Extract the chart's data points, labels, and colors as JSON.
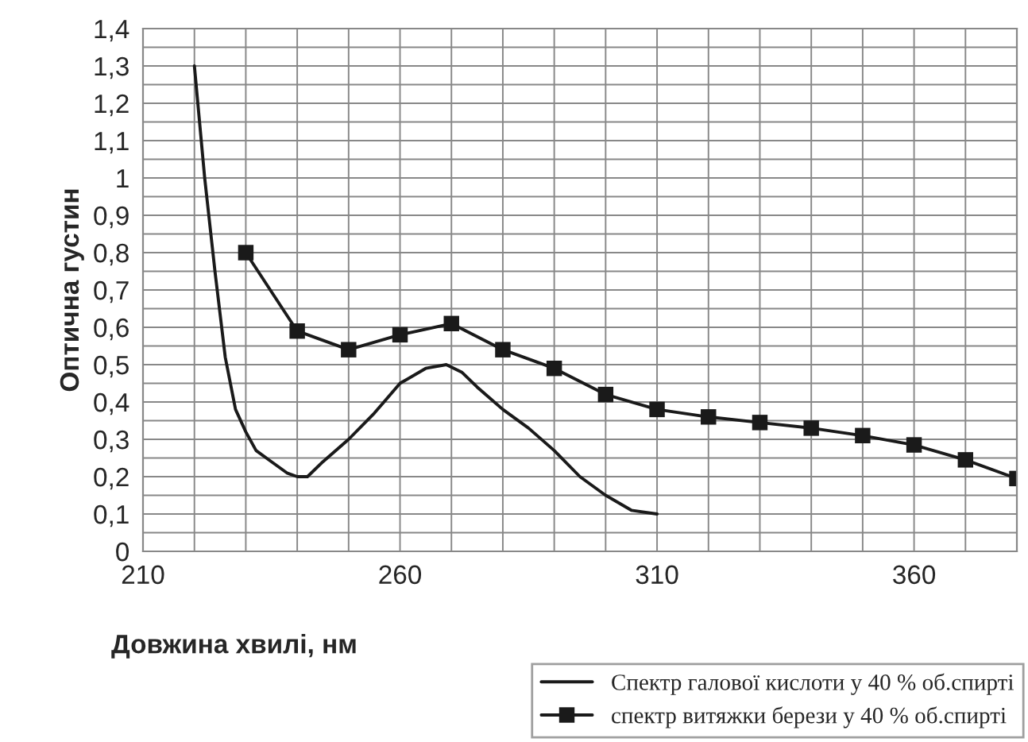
{
  "chart_data": {
    "type": "line",
    "xlabel": "Довжина хвилі, нм",
    "ylabel": "Оптична густин",
    "xlim": [
      210,
      380
    ],
    "ylim": [
      0,
      1.4
    ],
    "xticks": [
      210,
      {
        "value": 220,
        "label": null
      },
      {
        "value": 230,
        "label": null
      },
      {
        "value": 240,
        "label": null
      },
      {
        "value": 250,
        "label": null
      },
      260,
      {
        "value": 270,
        "label": null
      },
      {
        "value": 280,
        "label": null
      },
      {
        "value": 290,
        "label": null
      },
      {
        "value": 300,
        "label": null
      },
      310,
      {
        "value": 320,
        "label": null
      },
      {
        "value": 330,
        "label": null
      },
      {
        "value": 340,
        "label": null
      },
      {
        "value": 350,
        "label": null
      },
      360,
      {
        "value": 370,
        "label": null
      },
      {
        "value": 380,
        "label": null
      }
    ],
    "yticks": [
      0,
      {
        "value": 0.05,
        "label": null
      },
      {
        "value": 0.1,
        "label": "0,1"
      },
      {
        "value": 0.15,
        "label": null
      },
      {
        "value": 0.2,
        "label": "0,2"
      },
      {
        "value": 0.25,
        "label": null
      },
      {
        "value": 0.3,
        "label": "0,3"
      },
      {
        "value": 0.35,
        "label": null
      },
      {
        "value": 0.4,
        "label": "0,4"
      },
      {
        "value": 0.45,
        "label": null
      },
      {
        "value": 0.5,
        "label": "0,5"
      },
      {
        "value": 0.55,
        "label": null
      },
      {
        "value": 0.6,
        "label": "0,6"
      },
      {
        "value": 0.65,
        "label": null
      },
      {
        "value": 0.7,
        "label": "0,7"
      },
      {
        "value": 0.75,
        "label": null
      },
      {
        "value": 0.8,
        "label": "0,8"
      },
      {
        "value": 0.85,
        "label": null
      },
      {
        "value": 0.9,
        "label": "0,9"
      },
      {
        "value": 0.95,
        "label": null
      },
      1,
      {
        "value": 1.05,
        "label": null
      },
      {
        "value": 1.1,
        "label": "1,1"
      },
      {
        "value": 1.15,
        "label": null
      },
      {
        "value": 1.2,
        "label": "1,2"
      },
      {
        "value": 1.25,
        "label": null
      },
      {
        "value": 1.3,
        "label": "1,3"
      },
      {
        "value": 1.35,
        "label": null
      },
      {
        "value": 1.4,
        "label": "1,4"
      }
    ],
    "grid": true,
    "legend": "bottom right",
    "series": [
      {
        "name": "Спектр галової кислоти у 40 % об.спирті",
        "color": "#1a1a1a",
        "marker": "none",
        "x": [
          220,
          222,
          224,
          226,
          228,
          230,
          232,
          235,
          238,
          240,
          242,
          245,
          250,
          255,
          260,
          265,
          269,
          272,
          275,
          280,
          285,
          290,
          295,
          300,
          305,
          310
        ],
        "values": [
          1.3,
          1.0,
          0.75,
          0.52,
          0.38,
          0.32,
          0.27,
          0.24,
          0.21,
          0.2,
          0.2,
          0.24,
          0.3,
          0.37,
          0.45,
          0.49,
          0.5,
          0.48,
          0.44,
          0.38,
          0.33,
          0.27,
          0.2,
          0.15,
          0.11,
          0.1
        ]
      },
      {
        "name": "спектр витяжки берези у 40 % об.спирті",
        "color": "#1a1a1a",
        "marker": "square",
        "x": [
          230,
          240,
          250,
          260,
          270,
          280,
          290,
          300,
          310,
          320,
          330,
          340,
          350,
          360,
          370,
          380
        ],
        "values": [
          0.8,
          0.59,
          0.54,
          0.58,
          0.61,
          0.54,
          0.49,
          0.42,
          0.38,
          0.36,
          0.345,
          0.33,
          0.31,
          0.285,
          0.245,
          0.195
        ]
      }
    ]
  }
}
